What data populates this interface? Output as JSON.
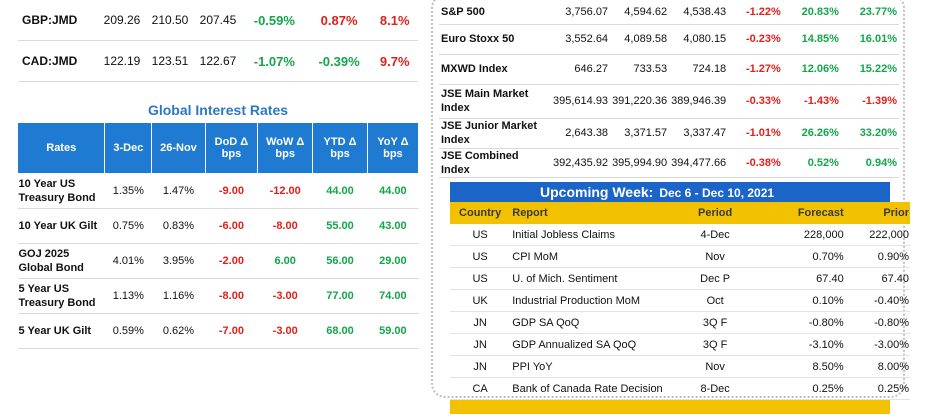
{
  "fx": [
    {
      "pair": "GBP:JMD",
      "v1": "209.26",
      "v2": "210.50",
      "v3": "207.45",
      "c1": "-0.59%",
      "c1s": "pos",
      "c2": "0.87%",
      "c2s": "neg",
      "c3": "8.1%",
      "c3s": "neg"
    },
    {
      "pair": "CAD:JMD",
      "v1": "122.19",
      "v2": "123.51",
      "v3": "122.67",
      "c1": "-1.07%",
      "c1s": "pos",
      "c2": "-0.39%",
      "c2s": "pos",
      "c3": "9.7%",
      "c3s": "neg"
    }
  ],
  "interest": {
    "title": "Global Interest Rates",
    "headers": [
      "Rates",
      "3-Dec",
      "26-Nov",
      "DoD Δ bps",
      "WoW Δ bps",
      "YTD Δ bps",
      "YoY Δ bps"
    ],
    "rows": [
      {
        "name": "10 Year US Treasury Bond",
        "d1": "1.35%",
        "d2": "1.47%",
        "dod": "-9.00",
        "wow": "-12.00",
        "ytd": "44.00",
        "yoy": "44.00",
        "dods": "neg",
        "wows": "neg",
        "ytds": "pos",
        "yoys": "pos"
      },
      {
        "name": "10 Year UK Gilt",
        "d1": "0.75%",
        "d2": "0.83%",
        "dod": "-6.00",
        "wow": "-8.00",
        "ytd": "55.00",
        "yoy": "43.00",
        "dods": "neg",
        "wows": "neg",
        "ytds": "pos",
        "yoys": "pos"
      },
      {
        "name": "GOJ 2025 Global Bond",
        "d1": "4.01%",
        "d2": "3.95%",
        "dod": "-2.00",
        "wow": "6.00",
        "ytd": "56.00",
        "yoy": "29.00",
        "dods": "neg",
        "wows": "pos",
        "ytds": "pos",
        "yoys": "pos"
      },
      {
        "name": "5 Year US Treasury Bond",
        "d1": "1.13%",
        "d2": "1.16%",
        "dod": "-8.00",
        "wow": "-3.00",
        "ytd": "77.00",
        "yoy": "74.00",
        "dods": "neg",
        "wows": "neg",
        "ytds": "pos",
        "yoys": "pos"
      },
      {
        "name": "5 Year UK Gilt",
        "d1": "0.59%",
        "d2": "0.62%",
        "dod": "-7.00",
        "wow": "-3.00",
        "ytd": "68.00",
        "yoy": "59.00",
        "dods": "neg",
        "wows": "neg",
        "ytds": "pos",
        "yoys": "pos"
      }
    ]
  },
  "indices": [
    {
      "name": "S&P 500",
      "v1": "3,756.07",
      "v2": "4,594.62",
      "v3": "4,538.43",
      "c1": "-1.22%",
      "c2": "20.83%",
      "c3": "23.77%",
      "s1": "neg",
      "s2": "pos",
      "s3": "pos"
    },
    {
      "name": "Euro Stoxx 50",
      "v1": "3,552.64",
      "v2": "4,089.58",
      "v3": "4,080.15",
      "c1": "-0.23%",
      "c2": "14.85%",
      "c3": "16.01%",
      "s1": "neg",
      "s2": "pos",
      "s3": "pos"
    },
    {
      "name": "MXWD  Index",
      "v1": "646.27",
      "v2": "733.53",
      "v3": "724.18",
      "c1": "-1.27%",
      "c2": "12.06%",
      "c3": "15.22%",
      "s1": "neg",
      "s2": "pos",
      "s3": "pos"
    },
    {
      "name": "JSE Main Market Index",
      "v1": "395,614.93",
      "v2": "391,220.36",
      "v3": "389,946.39",
      "c1": "-0.33%",
      "c2": "-1.43%",
      "c3": "-1.39%",
      "s1": "neg",
      "s2": "neg",
      "s3": "neg"
    },
    {
      "name": "JSE Junior Market Index",
      "v1": "2,643.38",
      "v2": "3,371.57",
      "v3": "3,337.47",
      "c1": "-1.01%",
      "c2": "26.26%",
      "c3": "33.20%",
      "s1": "neg",
      "s2": "pos",
      "s3": "pos"
    },
    {
      "name": "JSE Combined Index",
      "v1": "392,435.92",
      "v2": "395,994.90",
      "v3": "394,477.66",
      "c1": "-0.38%",
      "c2": "0.52%",
      "c3": "0.94%",
      "s1": "neg",
      "s2": "pos",
      "s3": "pos"
    }
  ],
  "week": {
    "title": "Upcoming Week:",
    "dates": "Dec 6 - Dec 10, 2021",
    "headers": [
      "Country",
      "Report",
      "Period",
      "Forecast",
      "Prior"
    ],
    "rows": [
      {
        "country": "US",
        "report": "Initial Jobless Claims",
        "period": "4-Dec",
        "forecast": "228,000",
        "prior": "222,000"
      },
      {
        "country": "US",
        "report": "CPI MoM",
        "period": "Nov",
        "forecast": "0.70%",
        "prior": "0.90%"
      },
      {
        "country": "US",
        "report": "U. of Mich. Sentiment",
        "period": "Dec P",
        "forecast": "67.40",
        "prior": "67.40"
      },
      {
        "country": "UK",
        "report": "Industrial Production MoM",
        "period": "Oct",
        "forecast": "0.10%",
        "prior": "-0.40%"
      },
      {
        "country": "JN",
        "report": "GDP SA QoQ",
        "period": "3Q F",
        "forecast": "-0.80%",
        "prior": "-0.80%"
      },
      {
        "country": "JN",
        "report": "GDP Annualized SA QoQ",
        "period": "3Q F",
        "forecast": "-3.10%",
        "prior": "-3.00%"
      },
      {
        "country": "JN",
        "report": "PPI YoY",
        "period": "Nov",
        "forecast": "8.50%",
        "prior": "8.00%"
      },
      {
        "country": "CA",
        "report": "Bank of Canada Rate Decision",
        "period": "8-Dec",
        "forecast": "0.25%",
        "prior": "0.25%"
      }
    ]
  }
}
